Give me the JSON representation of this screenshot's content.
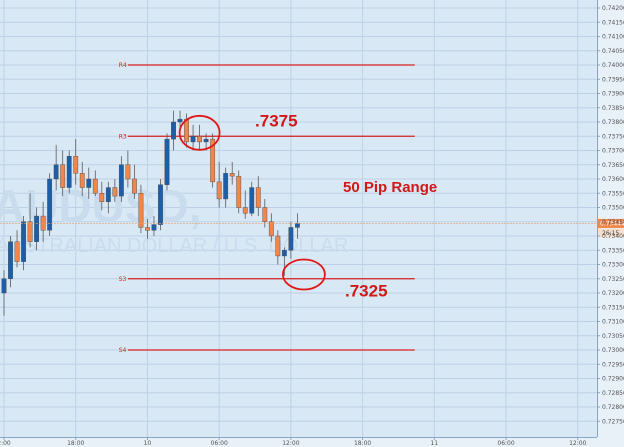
{
  "chart_data": {
    "type": "candlestick",
    "ylim": [
      0.727,
      0.742
    ],
    "y_ticks": [
      "0.74200",
      "0.74150",
      "0.74100",
      "0.74050",
      "0.74000",
      "0.73950",
      "0.73900",
      "0.73850",
      "0.73800",
      "0.73750",
      "0.73700",
      "0.73650",
      "0.73600",
      "0.73550",
      "0.73500",
      "0.73450",
      "0.73400",
      "0.73350",
      "0.73300",
      "0.73250",
      "0.73200",
      "0.73150",
      "0.73100",
      "0.73050",
      "0.73000",
      "0.72950",
      "0.72900",
      "0.72850",
      "0.72800",
      "0.72750"
    ],
    "y_tick_values": [
      0.742,
      0.7415,
      0.741,
      0.7405,
      0.74,
      0.7395,
      0.739,
      0.7385,
      0.738,
      0.7375,
      0.737,
      0.7365,
      0.736,
      0.7355,
      0.735,
      0.7345,
      0.734,
      0.7335,
      0.733,
      0.7325,
      0.732,
      0.7315,
      0.731,
      0.7305,
      0.73,
      0.7295,
      0.729,
      0.7285,
      0.728,
      0.7275
    ],
    "x_ticks": [
      {
        "label": "2:00",
        "slot": 0
      },
      {
        "label": "18:00",
        "slot": 11
      },
      {
        "label": "10",
        "slot": 22
      },
      {
        "label": "06:00",
        "slot": 33
      },
      {
        "label": "12:00",
        "slot": 44
      },
      {
        "label": "18:00",
        "slot": 55
      },
      {
        "label": "11",
        "slot": 66
      },
      {
        "label": "06:00",
        "slot": 77
      },
      {
        "label": "12:00",
        "slot": 88
      }
    ],
    "levels": [
      {
        "label": "R4",
        "value": 0.74
      },
      {
        "label": "R3",
        "value": 0.7375
      },
      {
        "label": "S3",
        "value": 0.7325
      },
      {
        "label": "S4",
        "value": 0.73
      }
    ],
    "annotations": [
      {
        "text": ".7375",
        "x_slot": 38.5,
        "y": 0.73785,
        "size": 17
      },
      {
        "text": "50 Pip Range",
        "x_slot": 52,
        "y": 0.73555,
        "size": 15
      },
      {
        "text": ".7325",
        "x_slot": 52.3,
        "y": 0.73188,
        "size": 17
      }
    ],
    "circles": [
      {
        "x_slot": 30,
        "y": 0.73762,
        "rx": 20,
        "ry": 17
      },
      {
        "x_slot": 46,
        "y": 0.73265,
        "rx": 21,
        "ry": 15
      }
    ],
    "current_price": {
      "value": 0.73444,
      "label": "0.73444",
      "sublabel": "26:15"
    },
    "watermark": {
      "symbol": "AUDUSD,",
      "name": "AUSTRALIAN DOLLAR / U.S. DOLLAR"
    },
    "up_color": "#1c5fa8",
    "down_color": "#f0864a",
    "level_color": "#d62020",
    "candles": [
      [
        0.732,
        0.7328,
        0.7312,
        0.7325
      ],
      [
        0.7325,
        0.734,
        0.7322,
        0.7338
      ],
      [
        0.7338,
        0.7342,
        0.7329,
        0.7331
      ],
      [
        0.7331,
        0.7347,
        0.7328,
        0.7345
      ],
      [
        0.7345,
        0.7355,
        0.7336,
        0.7338
      ],
      [
        0.7338,
        0.735,
        0.7335,
        0.7347
      ],
      [
        0.7347,
        0.7352,
        0.7338,
        0.7342
      ],
      [
        0.7342,
        0.7362,
        0.734,
        0.736
      ],
      [
        0.736,
        0.7372,
        0.7356,
        0.7365
      ],
      [
        0.7365,
        0.737,
        0.7354,
        0.7357
      ],
      [
        0.7357,
        0.737,
        0.7355,
        0.7368
      ],
      [
        0.7368,
        0.7374,
        0.7358,
        0.7362
      ],
      [
        0.7362,
        0.7366,
        0.7354,
        0.7357
      ],
      [
        0.7357,
        0.7364,
        0.7353,
        0.736
      ],
      [
        0.736,
        0.7363,
        0.7354,
        0.7355
      ],
      [
        0.7355,
        0.7359,
        0.7349,
        0.7352
      ],
      [
        0.7352,
        0.7359,
        0.7348,
        0.7357
      ],
      [
        0.7357,
        0.736,
        0.7352,
        0.7354
      ],
      [
        0.7354,
        0.7368,
        0.7352,
        0.7365
      ],
      [
        0.7365,
        0.737,
        0.7357,
        0.736
      ],
      [
        0.736,
        0.7365,
        0.7353,
        0.7355
      ],
      [
        0.7355,
        0.7358,
        0.7341,
        0.7343
      ],
      [
        0.7343,
        0.7346,
        0.7339,
        0.7342
      ],
      [
        0.7342,
        0.7347,
        0.734,
        0.7344
      ],
      [
        0.7344,
        0.736,
        0.7342,
        0.7358
      ],
      [
        0.7358,
        0.7376,
        0.7356,
        0.7374
      ],
      [
        0.7374,
        0.7384,
        0.737,
        0.738
      ],
      [
        0.738,
        0.7384,
        0.7374,
        0.7381
      ],
      [
        0.7381,
        0.7383,
        0.7371,
        0.7373
      ],
      [
        0.7373,
        0.7379,
        0.737,
        0.7375
      ],
      [
        0.7375,
        0.7379,
        0.737,
        0.7373
      ],
      [
        0.7373,
        0.7376,
        0.737,
        0.7374
      ],
      [
        0.7374,
        0.7376,
        0.7357,
        0.7359
      ],
      [
        0.7359,
        0.7366,
        0.735,
        0.7353
      ],
      [
        0.7353,
        0.7364,
        0.735,
        0.7362
      ],
      [
        0.7362,
        0.7366,
        0.7358,
        0.7361
      ],
      [
        0.7361,
        0.7363,
        0.7348,
        0.735
      ],
      [
        0.735,
        0.7356,
        0.7346,
        0.7348
      ],
      [
        0.7348,
        0.7359,
        0.7347,
        0.7357
      ],
      [
        0.7357,
        0.7361,
        0.7347,
        0.735
      ],
      [
        0.735,
        0.7353,
        0.7343,
        0.7345
      ],
      [
        0.7345,
        0.7348,
        0.7338,
        0.734
      ],
      [
        0.734,
        0.7342,
        0.733,
        0.7333
      ],
      [
        0.7333,
        0.7336,
        0.7326,
        0.7335
      ],
      [
        0.7335,
        0.7345,
        0.7332,
        0.7343
      ],
      [
        0.7343,
        0.7348,
        0.7339,
        0.73444
      ]
    ]
  }
}
